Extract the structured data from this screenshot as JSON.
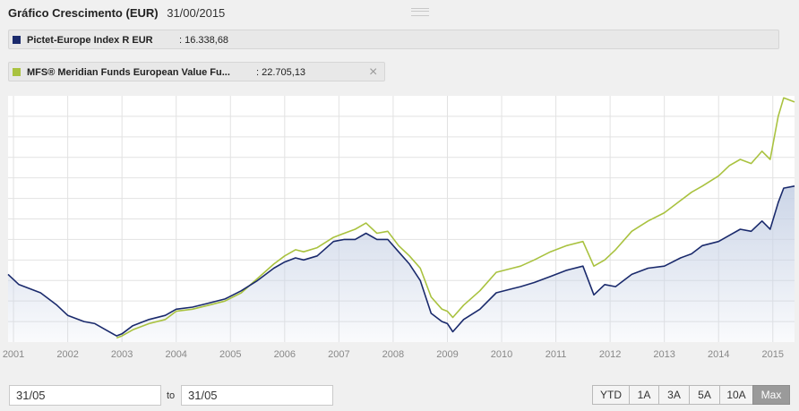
{
  "header": {
    "title": "Gráfico Crescimento (EUR)",
    "date": "31/00/2015"
  },
  "legend": [
    {
      "name": "Pictet-Europe Index R EUR",
      "value": ": 16.338,68",
      "color": "#1a2a6c"
    },
    {
      "name": "MFS® Meridian Funds European Value Fu...",
      "value": ": 22.705,13",
      "color": "#a9c23f"
    }
  ],
  "controls": {
    "from_value": "31/05",
    "to_label": "to",
    "to_value": "31/05",
    "ranges": [
      "YTD",
      "1A",
      "3A",
      "5A",
      "10A",
      "Max"
    ],
    "active_range": "Max"
  },
  "colors": {
    "series1": "#1a2a6c",
    "series2": "#a9c23f",
    "area_top": "#c9d3e6",
    "grid": "#e2e2e2",
    "tick_label": "#888888"
  },
  "chart_data": {
    "type": "line",
    "xlim": [
      2000.9,
      2015.4
    ],
    "ylim": [
      0,
      12
    ],
    "grid": true,
    "x_tick_labels": [
      "2001",
      "2002",
      "2003",
      "2004",
      "2005",
      "2006",
      "2007",
      "2008",
      "2009",
      "2010",
      "2011",
      "2012",
      "2013",
      "2014",
      "2015"
    ],
    "x_tick_positions": [
      2001,
      2002,
      2003,
      2004,
      2005,
      2006,
      2007,
      2008,
      2009,
      2010,
      2011,
      2012,
      2013,
      2014,
      2015
    ],
    "series": [
      {
        "name": "Pictet-Europe Index R EUR",
        "x": [
          2000.9,
          2001.1,
          2001.3,
          2001.5,
          2001.8,
          2002.0,
          2002.3,
          2002.5,
          2002.7,
          2002.9,
          2003.0,
          2003.2,
          2003.5,
          2003.8,
          2004.0,
          2004.3,
          2004.6,
          2004.9,
          2005.2,
          2005.5,
          2005.8,
          2006.0,
          2006.2,
          2006.35,
          2006.6,
          2006.9,
          2007.1,
          2007.3,
          2007.5,
          2007.7,
          2007.9,
          2008.1,
          2008.3,
          2008.5,
          2008.7,
          2008.9,
          2009.0,
          2009.1,
          2009.3,
          2009.6,
          2009.9,
          2010.2,
          2010.35,
          2010.6,
          2010.9,
          2011.2,
          2011.5,
          2011.7,
          2011.9,
          2012.1,
          2012.4,
          2012.7,
          2013.0,
          2013.3,
          2013.5,
          2013.7,
          2014.0,
          2014.2,
          2014.4,
          2014.6,
          2014.8,
          2014.95,
          2015.1,
          2015.2,
          2015.4
        ],
        "y": [
          3.3,
          2.8,
          2.6,
          2.4,
          1.8,
          1.3,
          1.0,
          0.9,
          0.6,
          0.3,
          0.4,
          0.8,
          1.1,
          1.3,
          1.6,
          1.7,
          1.9,
          2.1,
          2.5,
          3.0,
          3.6,
          3.9,
          4.1,
          4.0,
          4.2,
          4.9,
          5.0,
          5.0,
          5.3,
          5.0,
          5.0,
          4.4,
          3.8,
          3.0,
          1.4,
          1.0,
          0.9,
          0.5,
          1.1,
          1.6,
          2.4,
          2.6,
          2.7,
          2.9,
          3.2,
          3.5,
          3.7,
          2.3,
          2.8,
          2.7,
          3.3,
          3.6,
          3.7,
          4.1,
          4.3,
          4.7,
          4.9,
          5.2,
          5.5,
          5.4,
          5.9,
          5.5,
          6.8,
          7.5,
          7.6
        ]
      },
      {
        "name": "MFS® Meridian Funds European Value Fu...",
        "x": [
          2002.9,
          2003.0,
          2003.2,
          2003.5,
          2003.8,
          2004.0,
          2004.3,
          2004.6,
          2004.9,
          2005.2,
          2005.5,
          2005.8,
          2006.0,
          2006.2,
          2006.35,
          2006.6,
          2006.9,
          2007.1,
          2007.3,
          2007.5,
          2007.7,
          2007.9,
          2008.1,
          2008.3,
          2008.5,
          2008.7,
          2008.9,
          2009.0,
          2009.1,
          2009.3,
          2009.6,
          2009.9,
          2010.2,
          2010.35,
          2010.6,
          2010.9,
          2011.2,
          2011.5,
          2011.7,
          2011.9,
          2012.1,
          2012.4,
          2012.7,
          2013.0,
          2013.3,
          2013.5,
          2013.7,
          2014.0,
          2014.2,
          2014.4,
          2014.6,
          2014.8,
          2014.95,
          2015.1,
          2015.2,
          2015.4
        ],
        "y": [
          0.2,
          0.3,
          0.6,
          0.9,
          1.1,
          1.5,
          1.6,
          1.8,
          2.0,
          2.4,
          3.1,
          3.8,
          4.2,
          4.5,
          4.4,
          4.6,
          5.1,
          5.3,
          5.5,
          5.8,
          5.3,
          5.4,
          4.7,
          4.2,
          3.6,
          2.2,
          1.6,
          1.5,
          1.2,
          1.8,
          2.5,
          3.4,
          3.6,
          3.7,
          4.0,
          4.4,
          4.7,
          4.9,
          3.7,
          4.0,
          4.5,
          5.4,
          5.9,
          6.3,
          6.9,
          7.3,
          7.6,
          8.1,
          8.6,
          8.9,
          8.7,
          9.3,
          8.9,
          11.0,
          11.9,
          11.7
        ]
      }
    ]
  }
}
